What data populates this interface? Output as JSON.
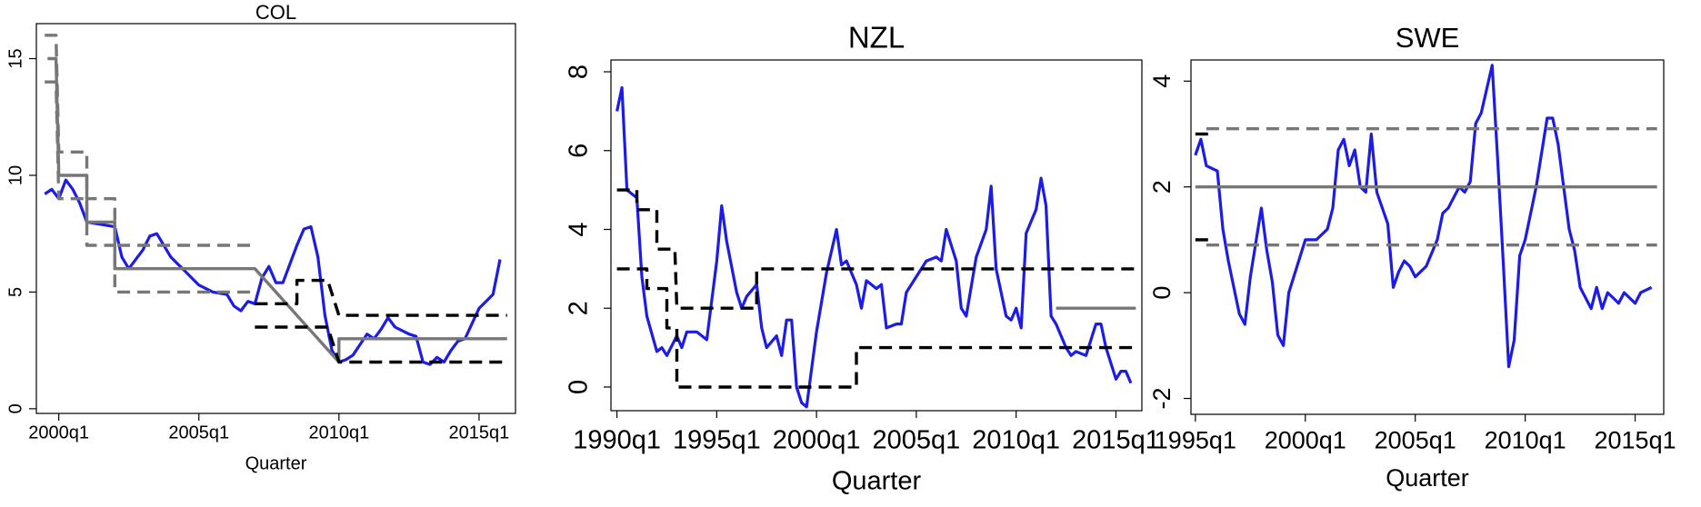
{
  "chart_data": [
    {
      "type": "line",
      "title": "COL",
      "x_label": "Quarter",
      "xlim": [
        1999.2,
        2016.3
      ],
      "xticks": [
        {
          "value": 2000,
          "label": "2000q1"
        },
        {
          "value": 2005,
          "label": "2005q1"
        },
        {
          "value": 2010,
          "label": "2010q1"
        },
        {
          "value": 2015,
          "label": "2015q1"
        }
      ],
      "ylim": [
        -0.2,
        16.5
      ],
      "yticks": [
        0,
        5,
        10,
        15
      ],
      "series": [
        {
          "color": "#1c1ce8",
          "line_style": "solid",
          "x": [
            1999.5,
            1999.75,
            2000,
            2000.25,
            2000.5,
            2000.75,
            2001,
            2001.5,
            2002,
            2002.25,
            2002.5,
            2003,
            2003.25,
            2003.5,
            2004,
            2004.25,
            2004.5,
            2005,
            2005.5,
            2006,
            2006.25,
            2006.5,
            2006.75,
            2007,
            2007.25,
            2007.5,
            2007.75,
            2008,
            2008.25,
            2008.5,
            2008.75,
            2009,
            2009.25,
            2009.5,
            2009.75,
            2010,
            2010.25,
            2010.5,
            2011,
            2011.25,
            2011.5,
            2011.75,
            2012,
            2012.5,
            2012.75,
            2013,
            2013.25,
            2013.5,
            2013.75,
            2014,
            2014.25,
            2014.5,
            2015,
            2015.25,
            2015.5,
            2015.75
          ],
          "values": [
            9.2,
            9.4,
            9.0,
            9.8,
            9.4,
            8.8,
            8.0,
            7.9,
            7.8,
            6.5,
            6.0,
            6.8,
            7.4,
            7.5,
            6.5,
            6.2,
            5.9,
            5.3,
            5.0,
            4.9,
            4.4,
            4.2,
            4.6,
            4.5,
            5.6,
            6.1,
            5.4,
            5.4,
            6.2,
            7.0,
            7.7,
            7.8,
            6.5,
            4.0,
            2.5,
            2.0,
            2.1,
            2.3,
            3.2,
            3.0,
            3.4,
            3.9,
            3.5,
            3.2,
            3.1,
            2.0,
            1.9,
            2.2,
            2.0,
            2.5,
            2.9,
            3.0,
            4.3,
            4.6,
            4.9,
            6.4
          ]
        },
        {
          "color": "#777777",
          "line_style": "solid",
          "x": [
            1999.6,
            1999.9,
            2000,
            2001,
            2001,
            2002,
            2002,
            2007,
            2010,
            2010,
            2016
          ],
          "values": [
            15,
            15,
            10,
            10,
            8,
            8,
            6,
            6,
            2,
            3,
            3
          ]
        },
        {
          "color": "#777777",
          "line_style": "dashed",
          "x": [
            1999.5,
            1999.9,
            2000,
            2001,
            2001,
            2002,
            2002,
            2007
          ],
          "values": [
            16,
            16,
            11,
            11,
            9,
            9,
            7,
            7
          ]
        },
        {
          "color": "#777777",
          "line_style": "dashed",
          "x": [
            1999.5,
            1999.9,
            2000,
            2001,
            2001,
            2002,
            2002,
            2007
          ],
          "values": [
            14,
            14,
            9,
            9,
            7,
            7,
            5,
            5
          ]
        },
        {
          "color": "#000000",
          "line_style": "dashed",
          "x": [
            2007,
            2008.5,
            2008.5,
            2009.6,
            2010,
            2016
          ],
          "values": [
            4.5,
            4.5,
            5.5,
            5.5,
            4,
            4
          ]
        },
        {
          "color": "#000000",
          "line_style": "dashed",
          "x": [
            2007,
            2009.6,
            2010,
            2016
          ],
          "values": [
            3.5,
            3.5,
            2,
            2
          ]
        }
      ]
    },
    {
      "type": "line",
      "title": "NZL",
      "x_label": "Quarter",
      "xlim": [
        1989.7,
        2016.3
      ],
      "xticks": [
        {
          "value": 1990,
          "label": "1990q1"
        },
        {
          "value": 1995,
          "label": "1995q1"
        },
        {
          "value": 2000,
          "label": "2000q1"
        },
        {
          "value": 2005,
          "label": "2005q1"
        },
        {
          "value": 2010,
          "label": "2010q1"
        },
        {
          "value": 2015,
          "label": "2015q1"
        }
      ],
      "ylim": [
        -0.6,
        8.3
      ],
      "yticks": [
        0,
        2,
        4,
        6,
        8
      ],
      "series": [
        {
          "color": "#1c1ce8",
          "line_style": "solid",
          "x": [
            1990,
            1990.25,
            1990.5,
            1991,
            1991.25,
            1991.5,
            1992,
            1992.25,
            1992.5,
            1993,
            1993.25,
            1993.5,
            1994,
            1994.5,
            1995,
            1995.25,
            1995.5,
            1996,
            1996.25,
            1996.5,
            1997,
            1997.25,
            1997.5,
            1998,
            1998.25,
            1998.5,
            1998.75,
            1999,
            1999.25,
            1999.5,
            2000,
            2000.5,
            2001,
            2001.25,
            2001.5,
            2002,
            2002.25,
            2002.5,
            2003,
            2003.25,
            2003.5,
            2004,
            2004.25,
            2004.5,
            2005,
            2005.5,
            2006,
            2006.25,
            2006.5,
            2007,
            2007.25,
            2007.5,
            2008,
            2008.5,
            2008.75,
            2009,
            2009.5,
            2009.75,
            2010,
            2010.25,
            2010.5,
            2011,
            2011.25,
            2011.5,
            2011.75,
            2012,
            2012.5,
            2012.75,
            2013,
            2013.5,
            2014,
            2014.25,
            2014.5,
            2015,
            2015.25,
            2015.5,
            2015.75
          ],
          "values": [
            7.0,
            7.6,
            5.0,
            4.8,
            2.8,
            1.8,
            0.9,
            1.0,
            0.8,
            1.3,
            1.0,
            1.4,
            1.4,
            1.2,
            3.2,
            4.6,
            3.7,
            2.4,
            2.0,
            2.3,
            2.6,
            1.5,
            1.0,
            1.3,
            0.8,
            1.7,
            1.7,
            0.0,
            -0.4,
            -0.5,
            1.4,
            2.9,
            4.0,
            3.1,
            3.2,
            2.6,
            2.0,
            2.7,
            2.5,
            2.6,
            1.5,
            1.6,
            1.6,
            2.4,
            2.8,
            3.2,
            3.3,
            3.2,
            4.0,
            3.2,
            2.0,
            1.8,
            3.3,
            4.0,
            5.1,
            3.0,
            1.8,
            1.7,
            2.0,
            1.5,
            3.9,
            4.5,
            5.3,
            4.6,
            1.8,
            1.6,
            1.0,
            0.8,
            0.9,
            0.8,
            1.6,
            1.6,
            1.0,
            0.2,
            0.4,
            0.4,
            0.1
          ]
        },
        {
          "color": "#777777",
          "line_style": "solid",
          "x": [
            2012,
            2016
          ],
          "values": [
            2,
            2
          ]
        },
        {
          "color": "#000000",
          "line_style": "dashed",
          "x": [
            1990,
            1991,
            1991,
            1992,
            1992,
            1992.9,
            1993,
            1997,
            1997,
            2016
          ],
          "values": [
            5,
            5,
            4.5,
            4.5,
            3.5,
            3.5,
            2,
            2,
            3,
            3
          ]
        },
        {
          "color": "#000000",
          "line_style": "dashed",
          "x": [
            1990,
            1991.5,
            1991.5,
            1992.5,
            1992.5,
            1993,
            1993,
            2002,
            2002,
            2016
          ],
          "values": [
            3,
            3,
            2.5,
            2.5,
            1.5,
            1.5,
            0,
            0,
            1,
            1
          ]
        }
      ]
    },
    {
      "type": "line",
      "title": "SWE",
      "x_label": "Quarter",
      "xlim": [
        1994.8,
        2016.3
      ],
      "xticks": [
        {
          "value": 1995,
          "label": "1995q1"
        },
        {
          "value": 2000,
          "label": "2000q1"
        },
        {
          "value": 2005,
          "label": "2005q1"
        },
        {
          "value": 2010,
          "label": "2010q1"
        },
        {
          "value": 2015,
          "label": "2015q1"
        }
      ],
      "ylim": [
        -2.3,
        4.4
      ],
      "yticks": [
        -2,
        0,
        2,
        4
      ],
      "series": [
        {
          "color": "#1c1ce8",
          "line_style": "solid",
          "x": [
            1995,
            1995.25,
            1995.5,
            1996,
            1996.25,
            1996.5,
            1997,
            1997.25,
            1997.5,
            1998,
            1998.25,
            1998.5,
            1998.75,
            1999,
            1999.25,
            2000,
            2000.5,
            2001,
            2001.25,
            2001.5,
            2001.75,
            2002,
            2002.25,
            2002.5,
            2002.75,
            2003,
            2003.25,
            2003.75,
            2004,
            2004.25,
            2004.5,
            2004.75,
            2005,
            2005.5,
            2006,
            2006.25,
            2006.5,
            2007,
            2007.25,
            2007.5,
            2007.75,
            2008,
            2008.5,
            2008.75,
            2009,
            2009.25,
            2009.5,
            2009.75,
            2010,
            2010.5,
            2011,
            2011.25,
            2011.5,
            2012,
            2012.25,
            2012.5,
            2013,
            2013.25,
            2013.5,
            2013.75,
            2014,
            2014.25,
            2014.5,
            2015,
            2015.25,
            2015.75
          ],
          "values": [
            2.6,
            2.9,
            2.4,
            2.3,
            1.2,
            0.6,
            -0.4,
            -0.6,
            0.3,
            1.6,
            0.8,
            0.2,
            -0.8,
            -1.0,
            0.0,
            1.0,
            1.0,
            1.2,
            1.6,
            2.7,
            2.9,
            2.4,
            2.7,
            2.0,
            1.9,
            3.0,
            1.9,
            1.3,
            0.1,
            0.4,
            0.6,
            0.5,
            0.3,
            0.5,
            1.0,
            1.5,
            1.6,
            2.0,
            1.9,
            2.1,
            3.2,
            3.4,
            4.3,
            2.5,
            0.6,
            -1.4,
            -0.9,
            0.7,
            1.0,
            2.0,
            3.3,
            3.3,
            2.8,
            1.2,
            0.8,
            0.1,
            -0.3,
            0.1,
            -0.3,
            0.0,
            -0.1,
            -0.2,
            0.0,
            -0.2,
            0.0,
            0.1
          ]
        },
        {
          "color": "#777777",
          "line_style": "solid",
          "x": [
            1995,
            2016
          ],
          "values": [
            2,
            2
          ]
        },
        {
          "color": "#777777",
          "line_style": "dashed",
          "x": [
            1995.5,
            2016
          ],
          "values": [
            3.1,
            3.1
          ]
        },
        {
          "color": "#777777",
          "line_style": "dashed",
          "x": [
            1995.5,
            2016
          ],
          "values": [
            0.9,
            0.9
          ]
        },
        {
          "color": "#000000",
          "line_style": "dashed",
          "x": [
            1995,
            1995.6
          ],
          "values": [
            3,
            3
          ]
        },
        {
          "color": "#000000",
          "line_style": "dashed",
          "x": [
            1995,
            1995.6
          ],
          "values": [
            1,
            1
          ]
        }
      ]
    }
  ]
}
